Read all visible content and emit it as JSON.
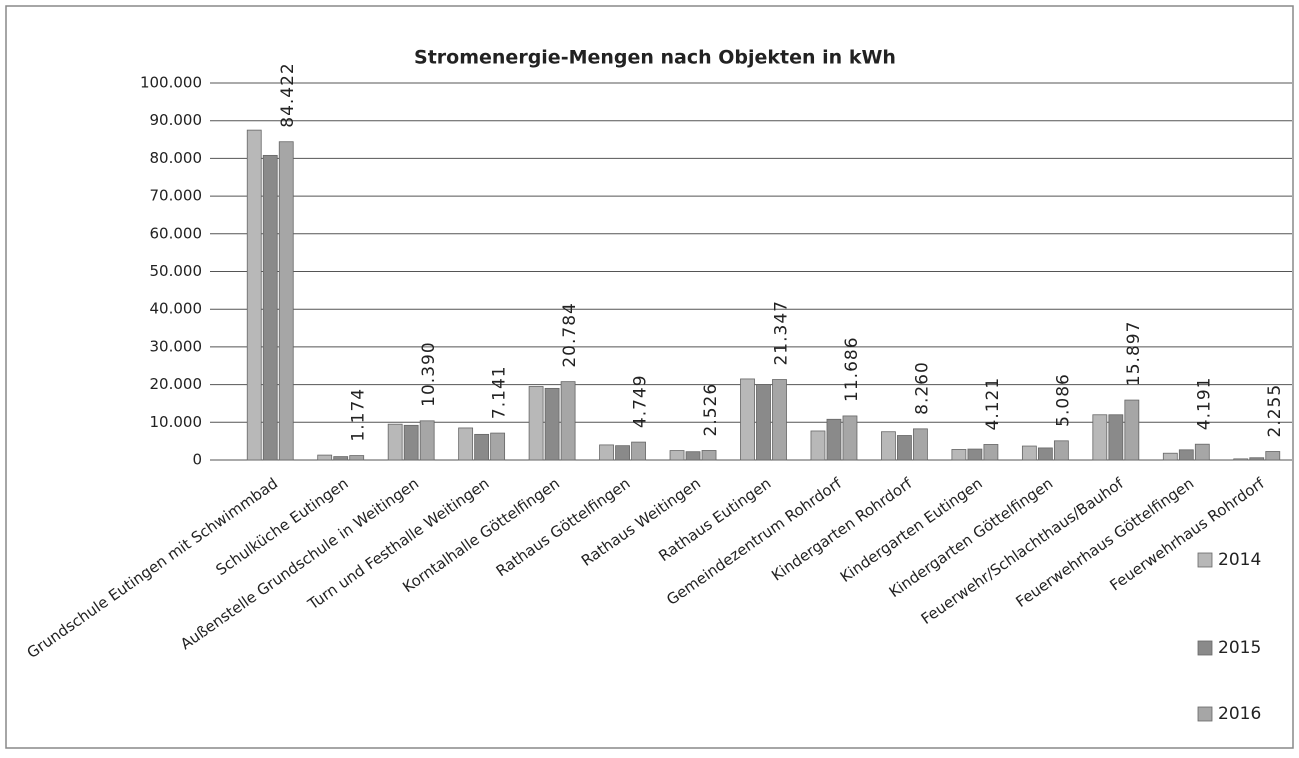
{
  "chart_data": {
    "type": "bar",
    "title": "Stromenergie-Mengen nach Objekten in kWh",
    "categories": [
      "Grundschule Eutingen mit Schwimmbad",
      "Schulküche Eutingen",
      "Außenstelle Grundschule in Weitingen",
      "Turn und Festhalle Weitingen",
      "Korntalhalle Göttelfingen",
      "Rathaus Göttelfingen",
      "Rathaus Weitingen",
      "Rathaus Eutingen",
      "Gemeindezentrum Rohrdorf",
      "Kindergarten Rohrdorf",
      "Kindergarten Eutingen",
      "Kindergarten Göttelfingen",
      "Feuerwehr/Schlachthaus/Bauhof",
      "Feuerwehrhaus Göttelfingen",
      "Feuerwehrhaus Rohrdorf"
    ],
    "series": [
      {
        "name": "2014",
        "color": "#b8b8b8",
        "values": [
          87500,
          1300,
          9500,
          8500,
          19500,
          4000,
          2500,
          21500,
          7700,
          7500,
          2800,
          3700,
          12000,
          1800,
          300
        ]
      },
      {
        "name": "2015",
        "color": "#8a8a8a",
        "values": [
          80800,
          900,
          9200,
          6800,
          19000,
          3800,
          2200,
          20000,
          10800,
          6500,
          2900,
          3200,
          12000,
          2700,
          600
        ]
      },
      {
        "name": "2016",
        "color": "#a6a6a6",
        "values": [
          84422,
          1174,
          10390,
          7141,
          20784,
          4749,
          2526,
          21347,
          11686,
          8260,
          4121,
          5086,
          15897,
          4191,
          2255
        ],
        "value_labels": [
          "84.422",
          "1.174",
          "10.390",
          "7.141",
          "20.784",
          "4.749",
          "2.526",
          "21.347",
          "11.686",
          "8.260",
          "4.121",
          "5.086",
          "15.897",
          "4.191",
          "2.255"
        ]
      }
    ],
    "ylim": [
      0,
      100000
    ],
    "yticks": [
      0,
      {
        "value": 10000,
        "label": "10.000"
      },
      {
        "value": 20000,
        "label": "20.000"
      },
      {
        "value": 30000,
        "label": "30.000"
      },
      {
        "value": 40000,
        "label": "40.000"
      },
      {
        "value": 50000,
        "label": "50.000"
      },
      {
        "value": 60000,
        "label": "60.000"
      },
      {
        "value": 70000,
        "label": "70.000"
      },
      {
        "value": 80000,
        "label": "80.000"
      },
      {
        "value": 90000,
        "label": "90.000"
      },
      {
        "value": 100000,
        "label": "100.000"
      }
    ],
    "grid": true,
    "legend": "right"
  }
}
